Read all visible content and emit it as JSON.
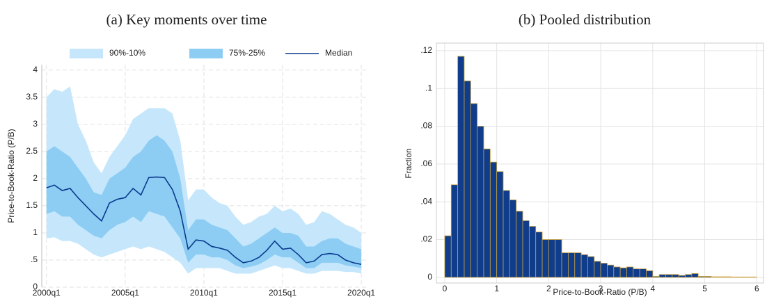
{
  "chart_data": [
    {
      "type": "line",
      "title": "(a) Key moments over time",
      "y_label": "Price-to-Book-Ratio (P/B)",
      "x": [
        2000,
        2000.5,
        2001,
        2001.5,
        2002,
        2002.5,
        2003,
        2003.5,
        2004,
        2004.5,
        2005,
        2005.5,
        2006,
        2006.5,
        2007,
        2007.5,
        2008,
        2008.5,
        2009,
        2009.5,
        2010,
        2010.5,
        2011,
        2011.5,
        2012,
        2012.5,
        2013,
        2013.5,
        2014,
        2014.5,
        2015,
        2015.5,
        2016,
        2016.5,
        2017,
        2017.5,
        2018,
        2018.5,
        2019,
        2019.5,
        2020
      ],
      "bands": [
        {
          "name": "90%-10%",
          "color": "#c6e7fb",
          "lower": [
            0.9,
            0.92,
            0.85,
            0.85,
            0.8,
            0.7,
            0.6,
            0.55,
            0.6,
            0.65,
            0.7,
            0.75,
            0.7,
            0.75,
            0.7,
            0.65,
            0.55,
            0.45,
            0.25,
            0.35,
            0.35,
            0.35,
            0.35,
            0.3,
            0.25,
            0.25,
            0.25,
            0.3,
            0.35,
            0.4,
            0.35,
            0.35,
            0.3,
            0.25,
            0.25,
            0.3,
            0.3,
            0.3,
            0.28,
            0.28,
            0.25
          ],
          "upper": [
            3.5,
            3.65,
            3.6,
            3.7,
            3.0,
            2.7,
            2.3,
            2.1,
            2.4,
            2.6,
            2.8,
            3.1,
            3.2,
            3.3,
            3.3,
            3.3,
            3.2,
            2.7,
            1.6,
            1.8,
            1.8,
            1.65,
            1.55,
            1.5,
            1.3,
            1.15,
            1.2,
            1.3,
            1.35,
            1.5,
            1.4,
            1.45,
            1.35,
            1.15,
            1.2,
            1.4,
            1.35,
            1.25,
            1.15,
            1.1,
            1.0
          ]
        },
        {
          "name": "75%-25%",
          "color": "#8dcdf4",
          "lower": [
            1.35,
            1.4,
            1.3,
            1.3,
            1.15,
            1.05,
            0.95,
            0.9,
            1.05,
            1.15,
            1.2,
            1.3,
            1.2,
            1.4,
            1.35,
            1.3,
            1.1,
            0.9,
            0.45,
            0.6,
            0.6,
            0.55,
            0.55,
            0.5,
            0.4,
            0.35,
            0.38,
            0.42,
            0.5,
            0.6,
            0.55,
            0.55,
            0.45,
            0.35,
            0.35,
            0.45,
            0.45,
            0.45,
            0.4,
            0.38,
            0.35
          ],
          "upper": [
            2.5,
            2.6,
            2.5,
            2.4,
            2.2,
            2.0,
            1.75,
            1.7,
            2.0,
            2.1,
            2.2,
            2.4,
            2.5,
            2.7,
            2.8,
            2.7,
            2.5,
            2.0,
            1.05,
            1.25,
            1.25,
            1.15,
            1.1,
            1.05,
            0.9,
            0.75,
            0.8,
            0.9,
            1.0,
            1.1,
            1.0,
            1.0,
            0.95,
            0.75,
            0.75,
            0.85,
            0.9,
            0.9,
            0.8,
            0.75,
            0.7
          ]
        }
      ],
      "series": [
        {
          "name": "Median",
          "color": "#0b3a8c",
          "values": [
            1.83,
            1.88,
            1.78,
            1.82,
            1.65,
            1.5,
            1.35,
            1.22,
            1.55,
            1.62,
            1.65,
            1.82,
            1.7,
            2.02,
            2.03,
            2.02,
            1.8,
            1.4,
            0.7,
            0.87,
            0.85,
            0.75,
            0.72,
            0.68,
            0.55,
            0.45,
            0.48,
            0.55,
            0.68,
            0.85,
            0.7,
            0.72,
            0.6,
            0.45,
            0.48,
            0.6,
            0.62,
            0.6,
            0.5,
            0.45,
            0.42
          ]
        }
      ],
      "xlim": [
        1999.7,
        2020.35
      ],
      "xticks": [
        {
          "value": 2000,
          "label": "2000q1"
        },
        {
          "value": 2005,
          "label": "2005q1"
        },
        {
          "value": 2010,
          "label": "2010q1"
        },
        {
          "value": 2015,
          "label": "2015q1"
        },
        {
          "value": 2020,
          "label": "2020q1"
        }
      ],
      "ylim": [
        0,
        4.1
      ],
      "yticks": [
        0,
        {
          "value": 0.5,
          "label": ".5"
        },
        1,
        1.5,
        2,
        2.5,
        3,
        3.5,
        4
      ],
      "grid": true
    },
    {
      "type": "histogram",
      "title": "(b) Pooled distribution",
      "x_label": "Price-to-Book-Ratio (P/B)",
      "y_label": "Fraction",
      "color": "#0f3d8c",
      "edge_color": "#c9a13c",
      "bins": [
        0,
        0.125,
        0.25,
        0.375,
        0.5,
        0.625,
        0.75,
        0.875,
        1,
        1.125,
        1.25,
        1.375,
        1.5,
        1.625,
        1.75,
        1.875,
        2,
        2.125,
        2.25,
        2.375,
        2.5,
        2.625,
        2.75,
        2.875,
        3,
        3.125,
        3.25,
        3.375,
        3.5,
        3.625,
        3.75,
        3.875,
        4,
        4.125,
        4.25,
        4.375,
        4.5,
        4.625,
        4.75,
        4.875,
        5,
        5.125,
        5.25,
        5.375,
        5.5,
        5.625,
        5.75,
        5.875,
        6
      ],
      "values": [
        0.022,
        0.049,
        0.117,
        0.104,
        0.092,
        0.08,
        0.068,
        0.061,
        0.056,
        0.046,
        0.041,
        0.035,
        0.03,
        0.027,
        0.024,
        0.02,
        0.02,
        0.02,
        0.013,
        0.013,
        0.013,
        0.012,
        0.011,
        0.0085,
        0.0075,
        0.0065,
        0.0055,
        0.005,
        0.0055,
        0.0045,
        0.0045,
        0.0035,
        0.0005,
        0.0015,
        0.0015,
        0.0015,
        0.001,
        0.0015,
        0.002,
        0.0005,
        0.0005,
        0.0003,
        0.0003,
        0.0003,
        0.0002,
        0.0002,
        0.0002,
        0.0002
      ],
      "xlim": [
        -0.16,
        6.13
      ],
      "xticks": [
        0,
        1,
        2,
        3,
        4,
        5,
        6
      ],
      "ylim": [
        -0.003,
        0.124
      ],
      "yticks": [
        0,
        {
          "value": 0.02,
          "label": ".02"
        },
        {
          "value": 0.04,
          "label": ".04"
        },
        {
          "value": 0.06,
          "label": ".06"
        },
        {
          "value": 0.08,
          "label": ".08"
        },
        {
          "value": 0.1,
          "label": ".1"
        },
        {
          "value": 0.12,
          "label": ".12"
        }
      ],
      "grid": true
    }
  ]
}
